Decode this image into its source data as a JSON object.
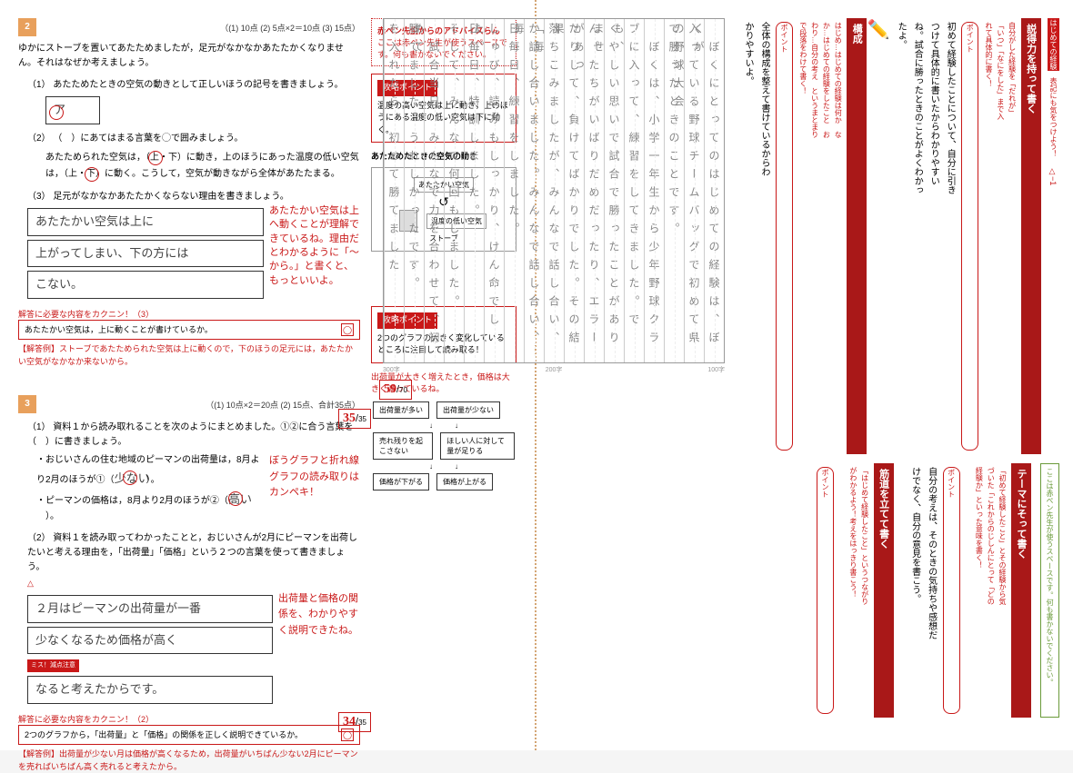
{
  "left": {
    "q2": {
      "num": "2",
      "scoring": "（(1) 10点 (2) 5点×2＝10点 (3) 15点）",
      "intro": "ゆかにストーブを置いてあたためましたが，足元がなかなかあたたかくなりません。それはなぜか考えましょう。",
      "sub1": {
        "label": "（1）",
        "text": "あたためたときの空気の動きとして正しいほうの記号を書きましょう。",
        "answer": "ア"
      },
      "sub2": {
        "label": "（2）",
        "text": "（　）にあてはまる言葉を◯で囲みましょう。",
        "body": "あたためられた空気は，（上・下）に動き，上のほうにあった温度の低い空気は，（上・下）に動く。こうして，空気が動きながら全体があたたまる。",
        "circled1": "上",
        "circled2": "下"
      },
      "sub3": {
        "label": "（3）",
        "text": "足元がなかなかあたたかくならない理由を書きましょう。",
        "answer_line1": "あたたかい空気は上に",
        "answer_line2": "上がってしまい、下の方には",
        "answer_line3": "こない。",
        "red_comment": "あたたかい空気は上へ動くことが理解できているね。理由だとわかるように「〜から。」と書くと、もっといいよ。"
      },
      "check_title": "解答に必要な内容をカクニン！（3）",
      "check_item": "あたたかい空気は，上に動くことが書けているか。",
      "check_ok": "◯",
      "example_label": "【解答例】",
      "example": "ストーブであたためられた空気は上に動くので，下のほうの足元には，あたたかい空気がなかなか来ないから。",
      "score_got": "35",
      "score_total": "35"
    },
    "q3": {
      "num": "3",
      "scoring": "（(1) 10点×2＝20点 (2) 15点、合計35点）",
      "sub1": {
        "label": "（1）",
        "text": "資料１から読み取れることを次のようにまとめました。①②に合う言葉を（　）に書きましょう。",
        "bullet1": "・おじいさんの住む地域のピーマンの出荷量は，8月より2月のほうが①",
        "bullet2": "・ピーマンの価格は，8月より2月のほうが②",
        "answer1": "少ない",
        "answer2": "高い",
        "red_comment": "ぼうグラフと折れ線グラフの読み取りはカンペキ！"
      },
      "sub2": {
        "label": "（2）",
        "text": "資料１を読み取ってわかったことと，おじいさんが2月にピーマンを出荷したいと考える理由を，「出荷量」「価格」という２つの言葉を使って書きましょう。",
        "answer_line1": "２月はピーマンの出荷量が一番",
        "answer_line2": "少なくなるため価格が高く",
        "answer_line3": "なると考えたからです。",
        "red_comment": "出荷量と価格の関係を、わかりやすく説明できたね。",
        "delta": "△",
        "miss_label": "ミス！減点注意"
      },
      "check_title": "解答に必要な内容をカクニン！（2）",
      "check_item": "2つのグラフから，「出荷量」と「価格」の関係を正しく説明できているか。",
      "check_ok": "◯",
      "example_label": "【解答例】",
      "example": "出荷量が少ない月は価格が高くなるため，出荷量がいちばん少ない2月にピーマンを売ればいちばん高く売れると考えたから。",
      "score_got": "34",
      "score_total": "35"
    },
    "sidebar": {
      "advice_title": "赤ペン先生からのアドバイスらん",
      "advice_text": "ここは赤ペン先生が使うスペースです。何も書かないでください。",
      "point1_title": "攻略ポイント",
      "point1_text": "温度の高い空気は上に動き，上のほうにある温度の低い空気は下に動く。",
      "diagram_title": "あたためたときの空気の動き",
      "diagram_warm": "あたたかい空気",
      "diagram_cold": "温度の低い空気",
      "diagram_stove": "ストーブ",
      "point2_title": "攻略ポイント",
      "point2_text": "2つのグラフの大きく変化しているところに注目して読み取る！",
      "hint_text": "出荷量が大きく増えたとき，価格は大きく減っているね。",
      "flow": {
        "box1": "出荷量が多い",
        "box2": "出荷量が少ない",
        "box3": "売れ残りを起こさない",
        "box4": "ほしい人に対して量が足りる",
        "box5": "価格が下がる",
        "box6": "価格が上がる"
      }
    }
  },
  "right": {
    "topic_label": "はじめての経験",
    "note_label": "表記にも気をつけよう！",
    "delta_marks": "△−1",
    "banner1": "説得力を持って書く",
    "banner1_sub": "自分がした経験を「だれが」「いつ」「なにをした」まで入れて具体的に書く！",
    "point_label": "ポイント",
    "comment1": "初めて経験したことについて、自分に引きつけて具体的に書いたからわかりやすいね。試合に勝ったときのことがよくわかったよ。",
    "banner2": "構成",
    "banner2_sub": "はじめ…はじめての経験は何か　なか…はじめての経験をしたこと　おわり…自分の考え　というまとまりで段落をわけて書く！",
    "comment2": "全体の構成を整えて書けているからわかりやすいよ。",
    "essay_cols": [
      "　ぼくにとってのはじめての経験は、ぼくが",
      "入っている野球チームバッグで初めて県の野球大会",
      "で勝ったときのことです。",
      "　ぼくは、小学一年生から少年野球クラ",
      "ブに入って、練習をしてきました。でも、",
      "くやしい思いで試合で勝ったことがありませ",
      "ん。たちがいばりだめだったり、エラーがあっ",
      "たりして、負けてばかりでした。その結果",
      "落ちこみましたが、みんなで話し合い、「毎",
      "か話し合いました。みんなで話し合い、毎",
      "日毎日、練習をしました。",
      "しゅび、読みもしっかり、けん命でした。",
      "日毎日、特訓しました。",
      "そして、みんなで何回もしました。",
      "　試合当日、みんなで力を合わせて、初めて",
      "勝てました。うれしかったです。",
      "を入れたら、初めて勝てました"
    ],
    "char_counts": [
      "100字",
      "200字",
      "300字"
    ],
    "score_got": "59",
    "score_total": "70",
    "banner3": "テーマにそって書く",
    "banner3_sub": "「初めて経験したこと」とその経験から気づいた「これからのじしんにとって「どの経験か」といった意味を書く！",
    "banner4": "筋道を立てて書く",
    "banner4_sub": "「はじめて経験したこと」というつながりがわかるよう！考えをはっきり書こう！",
    "comment3": "自分の考えは、そのときの気持ちや感想だけでなく、自分の意見を書こう。",
    "green_text": "ここは赤ペン先生が使うスペースです。何も書かないでください。"
  }
}
